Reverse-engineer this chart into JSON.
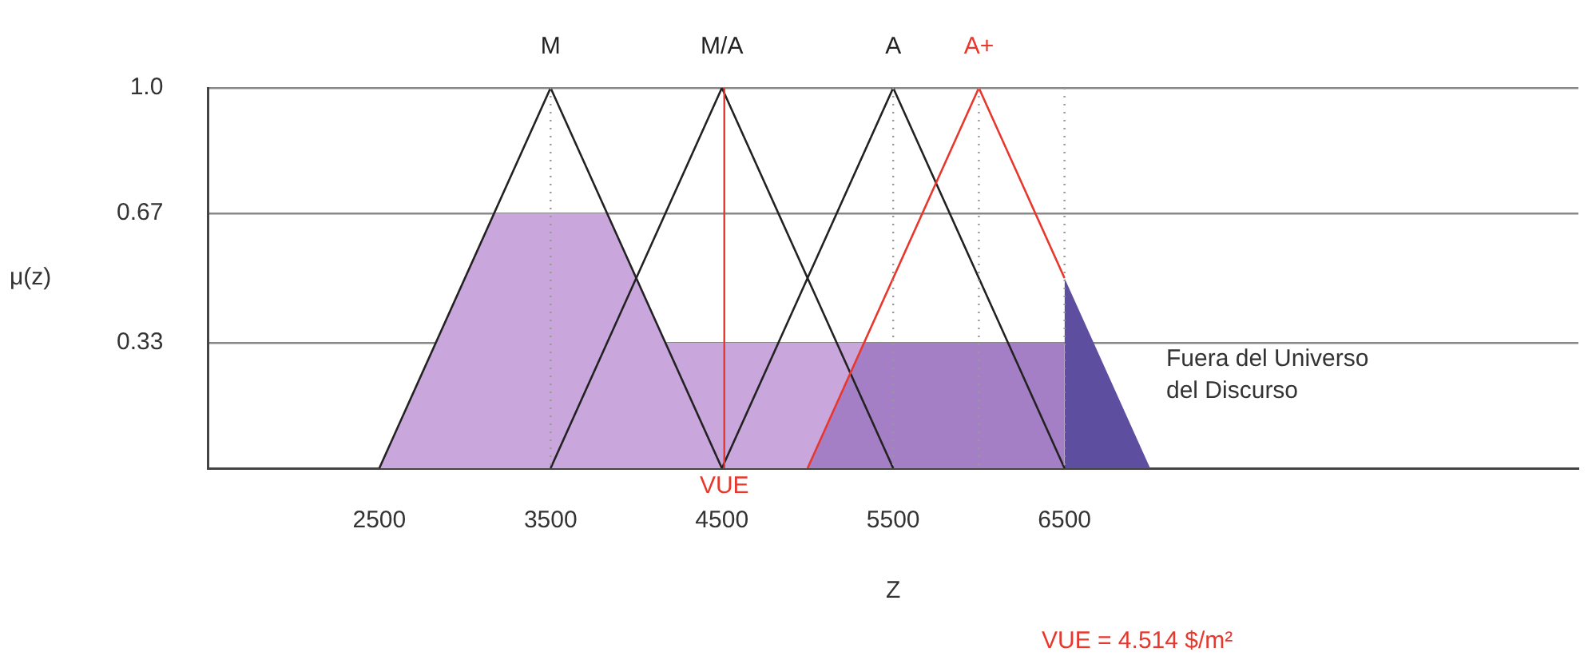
{
  "chart_data": {
    "type": "line",
    "xlabel": "Z",
    "ylabel": "μ(z)",
    "xlim": [
      1500,
      9500
    ],
    "xticks": [
      2500,
      3500,
      4500,
      5500,
      6500
    ],
    "ylim": [
      0,
      1
    ],
    "yticks": [
      0.33,
      0.67,
      {
        "value": 1,
        "label": "1.0"
      }
    ],
    "grid": "y",
    "legend": false,
    "marker": "none",
    "line_style": "solid",
    "series": [
      {
        "type": "area",
        "color": "#c9a6dc",
        "x": [
          2500,
          3170,
          3830,
          4170,
          6500,
          6500
        ],
        "values": [
          0,
          0.67,
          0.67,
          0.33,
          0.33,
          0
        ]
      },
      {
        "type": "area",
        "color": "#a57fc6",
        "x": [
          5000,
          5330,
          6500,
          6500
        ],
        "values": [
          0,
          0.33,
          0.33,
          0
        ]
      },
      {
        "type": "area",
        "color": "#5e4ea0",
        "x": [
          6500,
          6500,
          7000
        ],
        "values": [
          0,
          0.5,
          0
        ]
      },
      {
        "name": "M",
        "color": "#222222",
        "x": [
          2500,
          3500,
          4500
        ],
        "values": [
          0,
          1,
          0
        ]
      },
      {
        "name": "M/A",
        "color": "#222222",
        "x": [
          3500,
          4500,
          5500
        ],
        "values": [
          0,
          1,
          0
        ]
      },
      {
        "name": "A",
        "color": "#222222",
        "x": [
          4500,
          5500,
          6500
        ],
        "values": [
          0,
          1,
          0
        ]
      },
      {
        "name": "A+",
        "color": "#e8372c",
        "x": [
          5000,
          6000,
          6500
        ],
        "values": [
          0,
          1,
          0.5
        ]
      }
    ],
    "ref_lines": [
      {
        "axis": "x",
        "value": 3500,
        "color": "#999999",
        "line_style": "dotted"
      },
      {
        "axis": "x",
        "value": 5500,
        "color": "#999999",
        "line_style": "dotted"
      },
      {
        "axis": "x",
        "value": 6000,
        "color": "#999999",
        "line_style": "dotted"
      },
      {
        "axis": "x",
        "value": 6500,
        "color": "#999999",
        "line_style": "dotted"
      },
      {
        "axis": "x",
        "value": 4514,
        "label": "VUE",
        "color": "#e8372c",
        "line_style": "solid"
      }
    ],
    "annotations": [
      "Fuera del Universo del Discurso",
      "VUE = 4.514 $/m²"
    ]
  }
}
